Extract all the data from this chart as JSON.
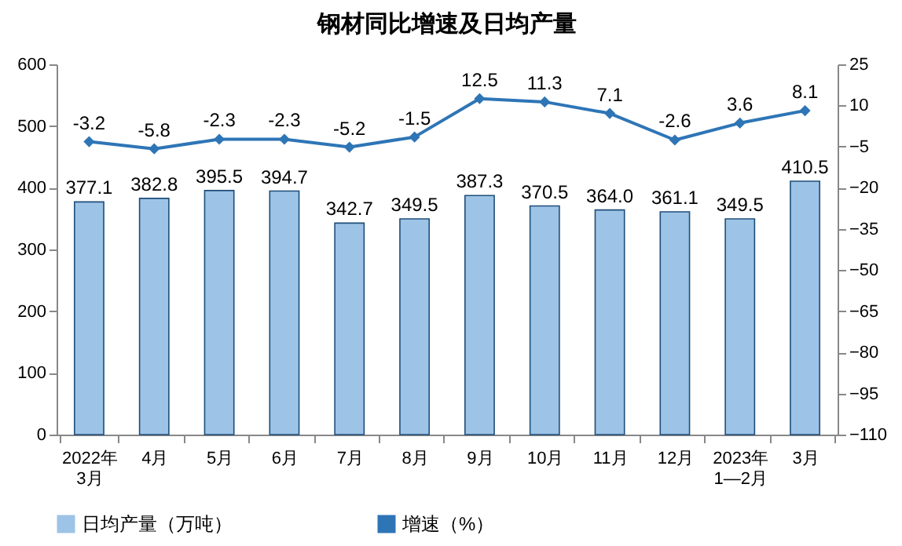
{
  "chart_data": {
    "type": "bar",
    "title": "钢材同比增速及日均产量",
    "categories": [
      "2022年3月",
      "4月",
      "5月",
      "6月",
      "7月",
      "8月",
      "9月",
      "10月",
      "11月",
      "12月",
      "2023年1—2月",
      "3月"
    ],
    "series": [
      {
        "name": "日均产量（万吨）",
        "color": "#9dc3e6",
        "values": [
          377.1,
          382.8,
          395.5,
          394.7,
          342.7,
          349.5,
          387.3,
          370.5,
          364.0,
          361.1,
          349.5,
          410.5
        ],
        "value_labels": [
          "377.1",
          "382.8",
          "395.5",
          "394.7",
          "342.7",
          "349.5",
          "387.3",
          "370.5",
          "364.0",
          "361.1",
          "349.5",
          "410.5"
        ]
      },
      {
        "name": "增速（%）",
        "type": "line",
        "axis": "y2",
        "color": "#2e75b6",
        "values": [
          -3.2,
          -5.8,
          -2.3,
          -2.3,
          -5.2,
          -1.5,
          12.5,
          11.3,
          7.1,
          -2.6,
          3.6,
          8.1
        ],
        "value_labels": [
          "-3.2",
          "-5.8",
          "-2.3",
          "-2.3",
          "-5.2",
          "-1.5",
          "12.5",
          "11.3",
          "7.1",
          "-2.6",
          "3.6",
          "8.1"
        ]
      }
    ],
    "ylim": [
      0,
      600
    ],
    "yticks": [
      0,
      100,
      200,
      300,
      400,
      500,
      600
    ],
    "y2lim": [
      -110,
      25
    ],
    "y2ticks": [
      -110,
      -95,
      -80,
      -65,
      -50,
      -35,
      -20,
      -5,
      10,
      25
    ],
    "legend": "bottom",
    "marker": "diamond"
  }
}
